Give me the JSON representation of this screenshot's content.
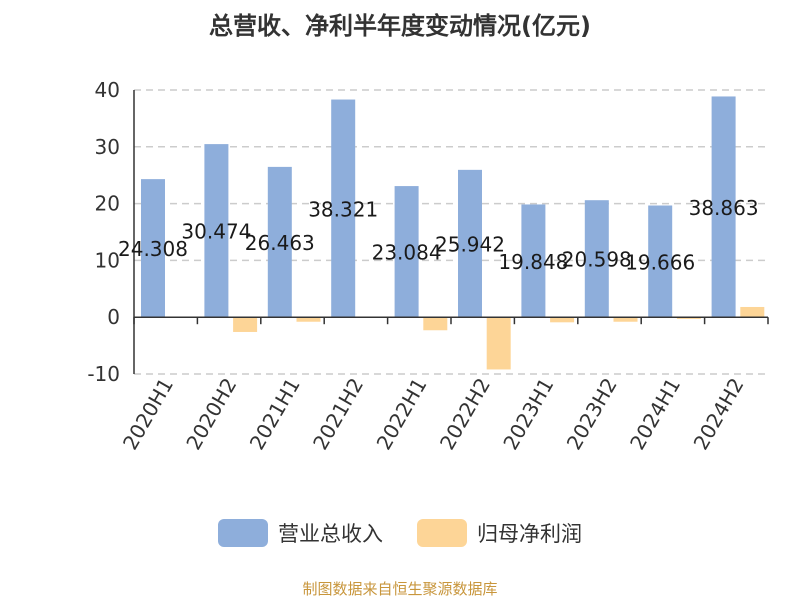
{
  "chart_data": {
    "type": "bar",
    "title": "总营收、净利半年度变动情况(亿元)",
    "categories": [
      "2020H1",
      "2020H2",
      "2021H1",
      "2021H2",
      "2022H1",
      "2022H2",
      "2023H1",
      "2023H2",
      "2024H1",
      "2024H2"
    ],
    "series": [
      {
        "name": "营业总收入",
        "color": "#8eaedb",
        "values": [
          24.308,
          30.474,
          26.463,
          38.321,
          23.084,
          25.942,
          19.848,
          20.598,
          19.666,
          38.863
        ],
        "labels": [
          "24.308",
          "30.474",
          "26.463",
          "38.321",
          "23.084",
          "25.942",
          "19.848",
          "20.598",
          "19.666",
          "38.863"
        ]
      },
      {
        "name": "归母净利润",
        "color": "#fdd597",
        "values": [
          0,
          -2.6,
          -0.8,
          0,
          -2.3,
          -9.2,
          -0.9,
          -0.8,
          -0.3,
          1.8
        ]
      }
    ],
    "ylim": [
      -10,
      40
    ],
    "yticks": [
      -10,
      0,
      10,
      20,
      30,
      40
    ],
    "grid": true,
    "legend_position": "bottom"
  },
  "source_note": "制图数据来自恒生聚源数据库"
}
